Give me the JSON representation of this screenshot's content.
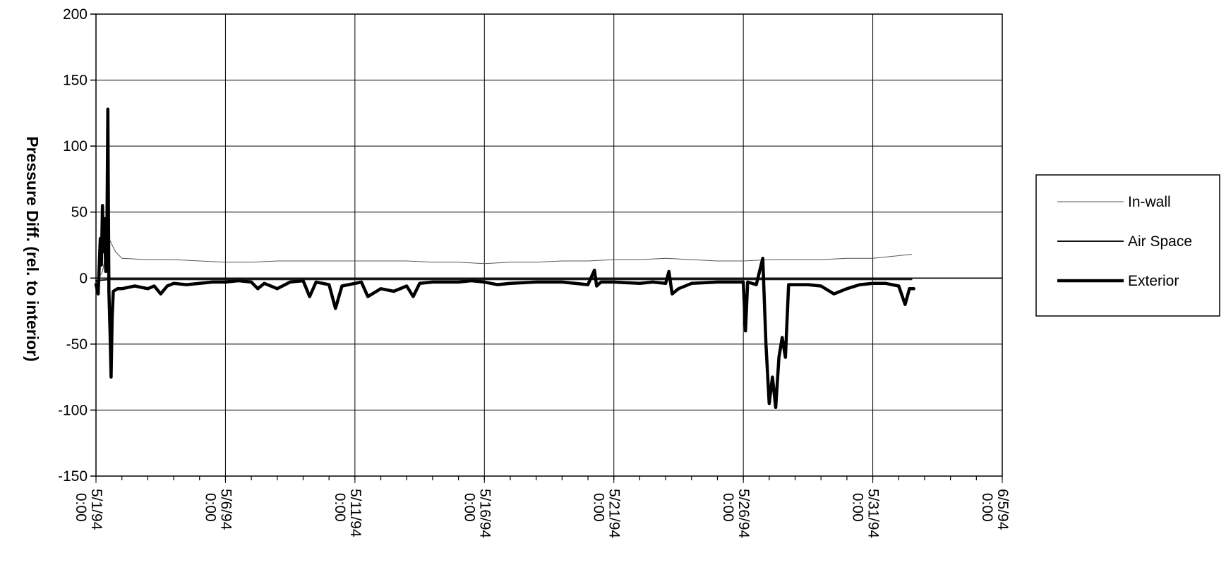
{
  "chart_data": {
    "type": "line",
    "title": "",
    "xlabel": "",
    "ylabel": "Pressure Diff. (rel. to interior)",
    "ylim": [
      -150,
      200
    ],
    "yticks": [
      -150,
      -100,
      -50,
      0,
      50,
      100,
      150,
      200
    ],
    "xlim": [
      "1994-05-01 00:00",
      "1994-06-05 00:00"
    ],
    "xtick_labels": [
      "5/1/94 0:00",
      "5/6/94 0:00",
      "5/11/94 0:00",
      "5/16/94 0:00",
      "5/21/94 0:00",
      "5/26/94 0:00",
      "5/31/94 0:00",
      "6/5/94 0:00"
    ],
    "grid": true,
    "legend_position": "right",
    "series": [
      {
        "name": "In-wall",
        "color": "#555555",
        "style": "thin",
        "points": [
          [
            "1994-05-01 00:00",
            -4
          ],
          [
            "1994-05-01 06:00",
            5
          ],
          [
            "1994-05-01 12:00",
            30
          ],
          [
            "1994-05-01 18:00",
            20
          ],
          [
            "1994-05-02 00:00",
            15
          ],
          [
            "1994-05-03 00:00",
            14
          ],
          [
            "1994-05-04 00:00",
            14
          ],
          [
            "1994-05-05 00:00",
            13
          ],
          [
            "1994-05-06 00:00",
            12
          ],
          [
            "1994-05-07 00:00",
            12
          ],
          [
            "1994-05-08 00:00",
            13
          ],
          [
            "1994-05-09 00:00",
            13
          ],
          [
            "1994-05-10 00:00",
            13
          ],
          [
            "1994-05-11 00:00",
            13
          ],
          [
            "1994-05-12 00:00",
            13
          ],
          [
            "1994-05-13 00:00",
            13
          ],
          [
            "1994-05-14 00:00",
            12
          ],
          [
            "1994-05-15 00:00",
            12
          ],
          [
            "1994-05-16 00:00",
            11
          ],
          [
            "1994-05-17 00:00",
            12
          ],
          [
            "1994-05-18 00:00",
            12
          ],
          [
            "1994-05-19 00:00",
            13
          ],
          [
            "1994-05-20 00:00",
            13
          ],
          [
            "1994-05-21 00:00",
            14
          ],
          [
            "1994-05-22 00:00",
            14
          ],
          [
            "1994-05-23 00:00",
            15
          ],
          [
            "1994-05-24 00:00",
            14
          ],
          [
            "1994-05-25 00:00",
            13
          ],
          [
            "1994-05-26 00:00",
            13
          ],
          [
            "1994-05-27 00:00",
            14
          ],
          [
            "1994-05-28 00:00",
            14
          ],
          [
            "1994-05-29 00:00",
            14
          ],
          [
            "1994-05-30 00:00",
            15
          ],
          [
            "1994-05-31 00:00",
            15
          ],
          [
            "1994-06-01 00:00",
            17
          ],
          [
            "1994-06-01 12:00",
            18
          ]
        ]
      },
      {
        "name": "Air Space",
        "color": "#111111",
        "style": "medium",
        "points": [
          [
            "1994-05-01 00:00",
            -2
          ],
          [
            "1994-05-01 12:00",
            -1
          ],
          [
            "1994-05-02 00:00",
            -1
          ],
          [
            "1994-05-03 00:00",
            -1
          ],
          [
            "1994-05-04 00:00",
            -1
          ],
          [
            "1994-05-05 00:00",
            -1
          ],
          [
            "1994-05-06 00:00",
            -1
          ],
          [
            "1994-05-07 00:00",
            -1
          ],
          [
            "1994-05-08 00:00",
            -1
          ],
          [
            "1994-05-09 00:00",
            -1
          ],
          [
            "1994-05-10 00:00",
            -1
          ],
          [
            "1994-05-11 00:00",
            -1
          ],
          [
            "1994-05-12 00:00",
            -1
          ],
          [
            "1994-05-13 00:00",
            -1
          ],
          [
            "1994-05-14 00:00",
            -1
          ],
          [
            "1994-05-15 00:00",
            -1
          ],
          [
            "1994-05-16 00:00",
            -1
          ],
          [
            "1994-05-17 00:00",
            -1
          ],
          [
            "1994-05-18 00:00",
            -1
          ],
          [
            "1994-05-19 00:00",
            -1
          ],
          [
            "1994-05-20 00:00",
            -1
          ],
          [
            "1994-05-21 00:00",
            -1
          ],
          [
            "1994-05-22 00:00",
            -1
          ],
          [
            "1994-05-23 00:00",
            -1
          ],
          [
            "1994-05-24 00:00",
            -1
          ],
          [
            "1994-05-25 00:00",
            -1
          ],
          [
            "1994-05-26 00:00",
            -1
          ],
          [
            "1994-05-27 00:00",
            -1
          ],
          [
            "1994-05-28 00:00",
            -1
          ],
          [
            "1994-05-29 00:00",
            -1
          ],
          [
            "1994-05-30 00:00",
            -1
          ],
          [
            "1994-05-31 00:00",
            -1
          ],
          [
            "1994-06-01 00:00",
            -1
          ],
          [
            "1994-06-01 12:00",
            -1
          ]
        ]
      },
      {
        "name": "Exterior",
        "color": "#000000",
        "style": "thick",
        "points": [
          [
            "1994-05-01 00:00",
            -5
          ],
          [
            "1994-05-01 02:00",
            -12
          ],
          [
            "1994-05-01 04:00",
            30
          ],
          [
            "1994-05-01 05:00",
            10
          ],
          [
            "1994-05-01 06:00",
            55
          ],
          [
            "1994-05-01 07:00",
            20
          ],
          [
            "1994-05-01 08:00",
            45
          ],
          [
            "1994-05-01 09:00",
            5
          ],
          [
            "1994-05-01 10:00",
            20
          ],
          [
            "1994-05-01 11:00",
            128
          ],
          [
            "1994-05-01 12:00",
            -10
          ],
          [
            "1994-05-01 13:00",
            -40
          ],
          [
            "1994-05-01 14:00",
            -75
          ],
          [
            "1994-05-01 15:00",
            -30
          ],
          [
            "1994-05-01 16:00",
            -10
          ],
          [
            "1994-05-01 20:00",
            -8
          ],
          [
            "1994-05-02 00:00",
            -8
          ],
          [
            "1994-05-02 12:00",
            -6
          ],
          [
            "1994-05-03 00:00",
            -8
          ],
          [
            "1994-05-03 06:00",
            -6
          ],
          [
            "1994-05-03 12:00",
            -12
          ],
          [
            "1994-05-03 18:00",
            -6
          ],
          [
            "1994-05-04 00:00",
            -4
          ],
          [
            "1994-05-04 12:00",
            -5
          ],
          [
            "1994-05-05 00:00",
            -4
          ],
          [
            "1994-05-05 12:00",
            -3
          ],
          [
            "1994-05-06 00:00",
            -3
          ],
          [
            "1994-05-06 12:00",
            -2
          ],
          [
            "1994-05-07 00:00",
            -3
          ],
          [
            "1994-05-07 06:00",
            -8
          ],
          [
            "1994-05-07 12:00",
            -4
          ],
          [
            "1994-05-08 00:00",
            -8
          ],
          [
            "1994-05-08 12:00",
            -3
          ],
          [
            "1994-05-09 00:00",
            -2
          ],
          [
            "1994-05-09 06:00",
            -14
          ],
          [
            "1994-05-09 12:00",
            -3
          ],
          [
            "1994-05-10 00:00",
            -5
          ],
          [
            "1994-05-10 06:00",
            -23
          ],
          [
            "1994-05-10 12:00",
            -6
          ],
          [
            "1994-05-11 00:00",
            -4
          ],
          [
            "1994-05-11 06:00",
            -3
          ],
          [
            "1994-05-11 12:00",
            -14
          ],
          [
            "1994-05-12 00:00",
            -8
          ],
          [
            "1994-05-12 12:00",
            -10
          ],
          [
            "1994-05-13 00:00",
            -6
          ],
          [
            "1994-05-13 06:00",
            -14
          ],
          [
            "1994-05-13 12:00",
            -4
          ],
          [
            "1994-05-14 00:00",
            -3
          ],
          [
            "1994-05-15 00:00",
            -3
          ],
          [
            "1994-05-15 12:00",
            -2
          ],
          [
            "1994-05-16 00:00",
            -3
          ],
          [
            "1994-05-16 12:00",
            -5
          ],
          [
            "1994-05-17 00:00",
            -4
          ],
          [
            "1994-05-18 00:00",
            -3
          ],
          [
            "1994-05-19 00:00",
            -3
          ],
          [
            "1994-05-19 12:00",
            -4
          ],
          [
            "1994-05-20 00:00",
            -5
          ],
          [
            "1994-05-20 06:00",
            6
          ],
          [
            "1994-05-20 08:00",
            -6
          ],
          [
            "1994-05-20 12:00",
            -3
          ],
          [
            "1994-05-21 00:00",
            -3
          ],
          [
            "1994-05-22 00:00",
            -4
          ],
          [
            "1994-05-22 12:00",
            -3
          ],
          [
            "1994-05-23 00:00",
            -4
          ],
          [
            "1994-05-23 03:00",
            5
          ],
          [
            "1994-05-23 06:00",
            -12
          ],
          [
            "1994-05-23 12:00",
            -8
          ],
          [
            "1994-05-24 00:00",
            -4
          ],
          [
            "1994-05-25 00:00",
            -3
          ],
          [
            "1994-05-25 12:00",
            -3
          ],
          [
            "1994-05-26 00:00",
            -3
          ],
          [
            "1994-05-26 02:00",
            -40
          ],
          [
            "1994-05-26 04:00",
            -3
          ],
          [
            "1994-05-26 12:00",
            -5
          ],
          [
            "1994-05-26 18:00",
            15
          ],
          [
            "1994-05-26 21:00",
            -50
          ],
          [
            "1994-05-27 00:00",
            -95
          ],
          [
            "1994-05-27 03:00",
            -75
          ],
          [
            "1994-05-27 06:00",
            -98
          ],
          [
            "1994-05-27 09:00",
            -60
          ],
          [
            "1994-05-27 12:00",
            -45
          ],
          [
            "1994-05-27 15:00",
            -60
          ],
          [
            "1994-05-27 18:00",
            -5
          ],
          [
            "1994-05-28 00:00",
            -5
          ],
          [
            "1994-05-28 12:00",
            -5
          ],
          [
            "1994-05-29 00:00",
            -6
          ],
          [
            "1994-05-29 12:00",
            -12
          ],
          [
            "1994-05-30 00:00",
            -8
          ],
          [
            "1994-05-30 12:00",
            -5
          ],
          [
            "1994-05-31 00:00",
            -4
          ],
          [
            "1994-05-31 12:00",
            -4
          ],
          [
            "1994-06-01 00:00",
            -6
          ],
          [
            "1994-06-01 06:00",
            -20
          ],
          [
            "1994-06-01 10:00",
            -8
          ],
          [
            "1994-06-01 14:00",
            -8
          ]
        ]
      }
    ]
  }
}
